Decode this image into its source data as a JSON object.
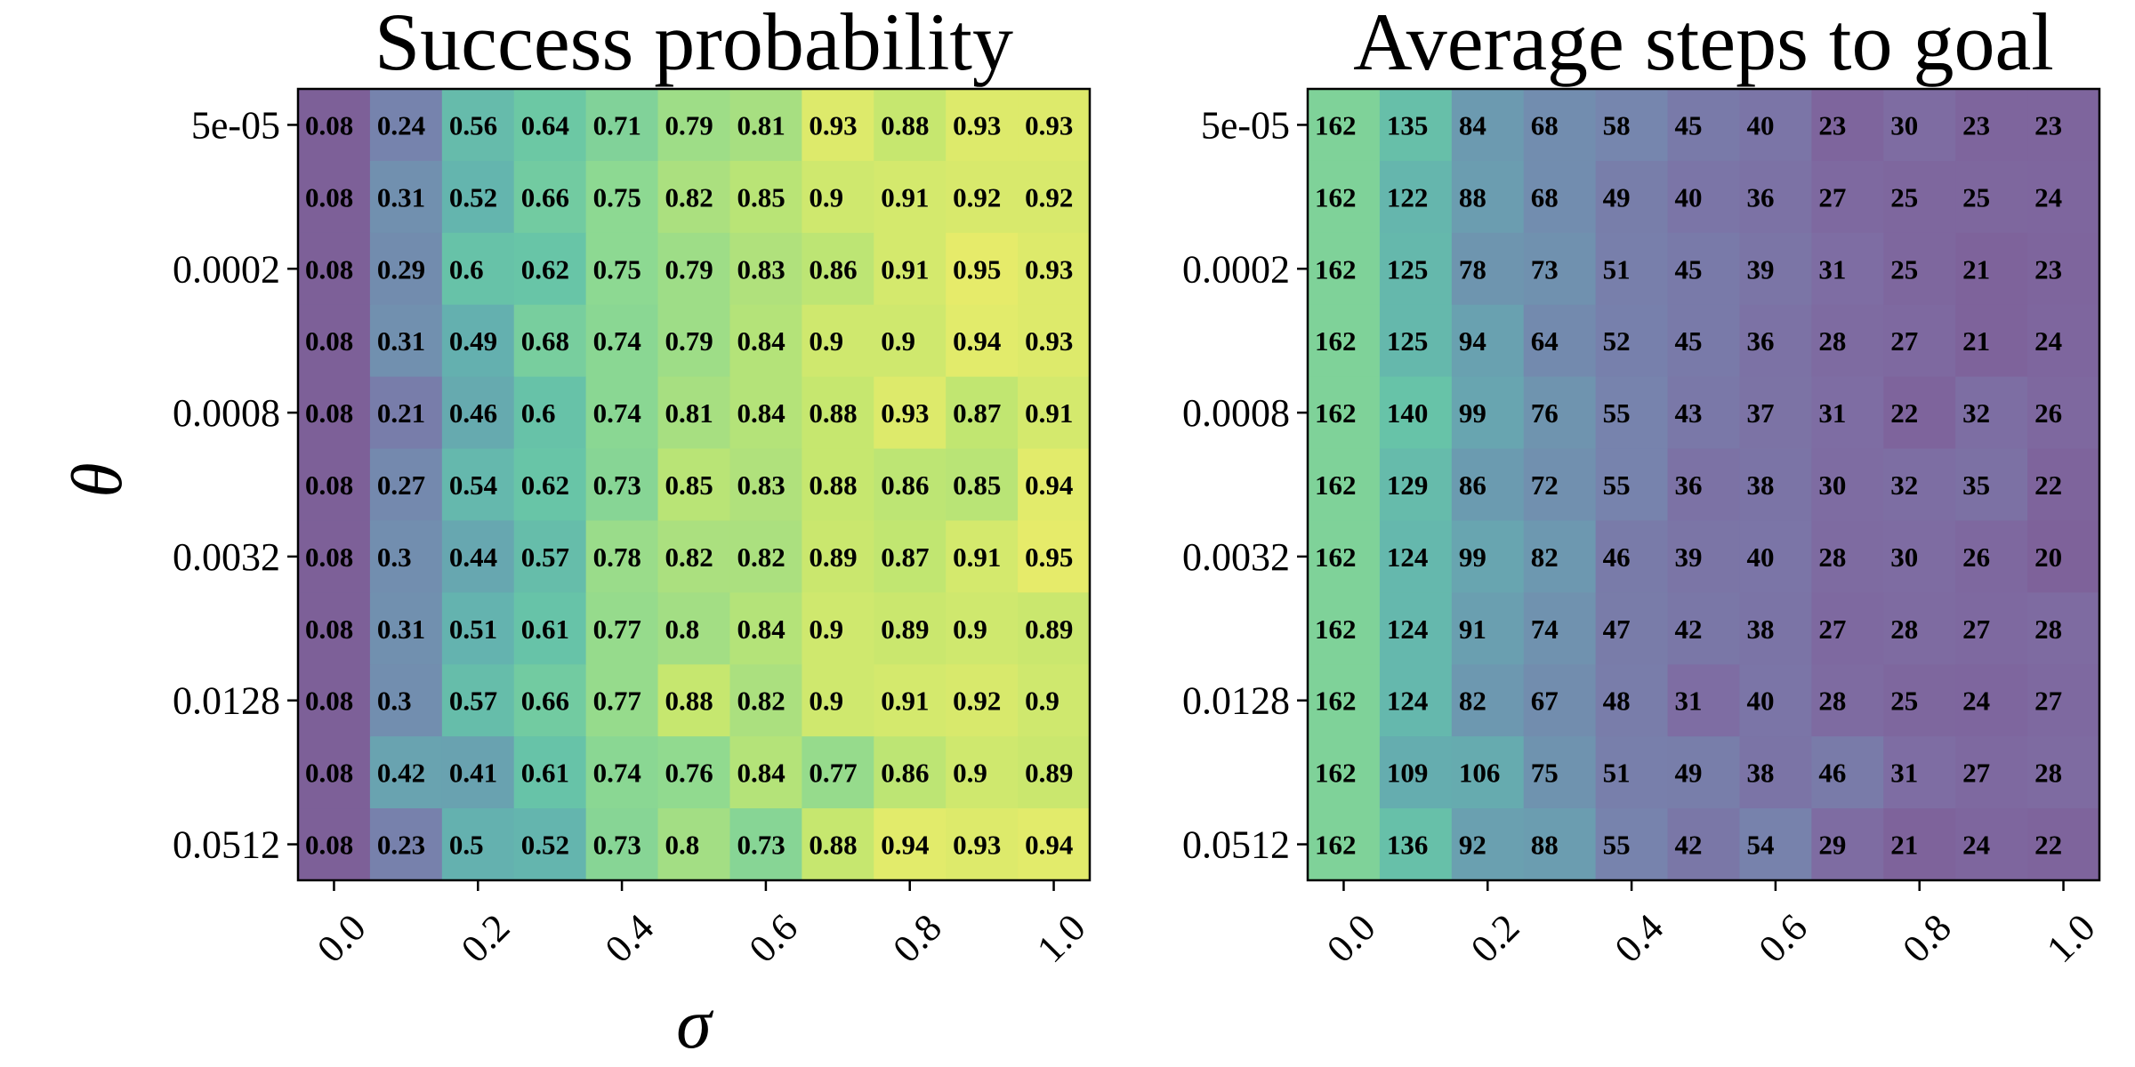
{
  "chart_data": [
    {
      "type": "heatmap",
      "title": "Success probability",
      "xlabel": "σ",
      "ylabel": "θ",
      "x_tick_labels": [
        "0.0",
        "0.2",
        "0.4",
        "0.6",
        "0.8",
        "1.0"
      ],
      "y_tick_labels": [
        "5e-05",
        "0.0002",
        "0.0008",
        "0.0032",
        "0.0128",
        "0.0512"
      ],
      "colormap": "viridis",
      "alpha": 0.7,
      "value_range": [
        0,
        1
      ],
      "values": [
        [
          "0.08",
          "0.24",
          "0.56",
          "0.64",
          "0.71",
          "0.79",
          "0.81",
          "0.93",
          "0.88",
          "0.93",
          "0.93"
        ],
        [
          "0.08",
          "0.31",
          "0.52",
          "0.66",
          "0.75",
          "0.82",
          "0.85",
          "0.9",
          "0.91",
          "0.92",
          "0.92"
        ],
        [
          "0.08",
          "0.29",
          "0.6",
          "0.62",
          "0.75",
          "0.79",
          "0.83",
          "0.86",
          "0.91",
          "0.95",
          "0.93"
        ],
        [
          "0.08",
          "0.31",
          "0.49",
          "0.68",
          "0.74",
          "0.79",
          "0.84",
          "0.9",
          "0.9",
          "0.94",
          "0.93"
        ],
        [
          "0.08",
          "0.21",
          "0.46",
          "0.6",
          "0.74",
          "0.81",
          "0.84",
          "0.88",
          "0.93",
          "0.87",
          "0.91"
        ],
        [
          "0.08",
          "0.27",
          "0.54",
          "0.62",
          "0.73",
          "0.85",
          "0.83",
          "0.88",
          "0.86",
          "0.85",
          "0.94"
        ],
        [
          "0.08",
          "0.3",
          "0.44",
          "0.57",
          "0.78",
          "0.82",
          "0.82",
          "0.89",
          "0.87",
          "0.91",
          "0.95"
        ],
        [
          "0.08",
          "0.31",
          "0.51",
          "0.61",
          "0.77",
          "0.8",
          "0.84",
          "0.9",
          "0.89",
          "0.9",
          "0.89"
        ],
        [
          "0.08",
          "0.3",
          "0.57",
          "0.66",
          "0.77",
          "0.88",
          "0.82",
          "0.9",
          "0.91",
          "0.92",
          "0.9"
        ],
        [
          "0.08",
          "0.42",
          "0.41",
          "0.61",
          "0.74",
          "0.76",
          "0.84",
          "0.77",
          "0.86",
          "0.9",
          "0.89"
        ],
        [
          "0.08",
          "0.23",
          "0.5",
          "0.52",
          "0.73",
          "0.8",
          "0.73",
          "0.88",
          "0.94",
          "0.93",
          "0.94"
        ]
      ]
    },
    {
      "type": "heatmap",
      "title": "Average steps to goal",
      "xlabel": "",
      "ylabel": "",
      "x_tick_labels": [
        "0.0",
        "0.2",
        "0.4",
        "0.6",
        "0.8",
        "1.0"
      ],
      "y_tick_labels": [
        "5e-05",
        "0.0002",
        "0.0008",
        "0.0032",
        "0.0128",
        "0.0512"
      ],
      "colormap": "viridis",
      "alpha": 0.7,
      "value_range": [
        0,
        230
      ],
      "values": [
        [
          "162",
          "135",
          "84",
          "68",
          "58",
          "45",
          "40",
          "23",
          "30",
          "23",
          "23"
        ],
        [
          "162",
          "122",
          "88",
          "68",
          "49",
          "40",
          "36",
          "27",
          "25",
          "25",
          "24"
        ],
        [
          "162",
          "125",
          "78",
          "73",
          "51",
          "45",
          "39",
          "31",
          "25",
          "21",
          "23"
        ],
        [
          "162",
          "125",
          "94",
          "64",
          "52",
          "45",
          "36",
          "28",
          "27",
          "21",
          "24"
        ],
        [
          "162",
          "140",
          "99",
          "76",
          "55",
          "43",
          "37",
          "31",
          "22",
          "32",
          "26"
        ],
        [
          "162",
          "129",
          "86",
          "72",
          "55",
          "36",
          "38",
          "30",
          "32",
          "35",
          "22"
        ],
        [
          "162",
          "124",
          "99",
          "82",
          "46",
          "39",
          "40",
          "28",
          "30",
          "26",
          "20"
        ],
        [
          "162",
          "124",
          "91",
          "74",
          "47",
          "42",
          "38",
          "27",
          "28",
          "27",
          "28"
        ],
        [
          "162",
          "124",
          "82",
          "67",
          "48",
          "31",
          "40",
          "28",
          "25",
          "24",
          "27"
        ],
        [
          "162",
          "109",
          "106",
          "75",
          "51",
          "49",
          "38",
          "46",
          "31",
          "27",
          "28"
        ],
        [
          "162",
          "136",
          "92",
          "88",
          "55",
          "42",
          "54",
          "29",
          "21",
          "24",
          "22"
        ]
      ]
    }
  ]
}
